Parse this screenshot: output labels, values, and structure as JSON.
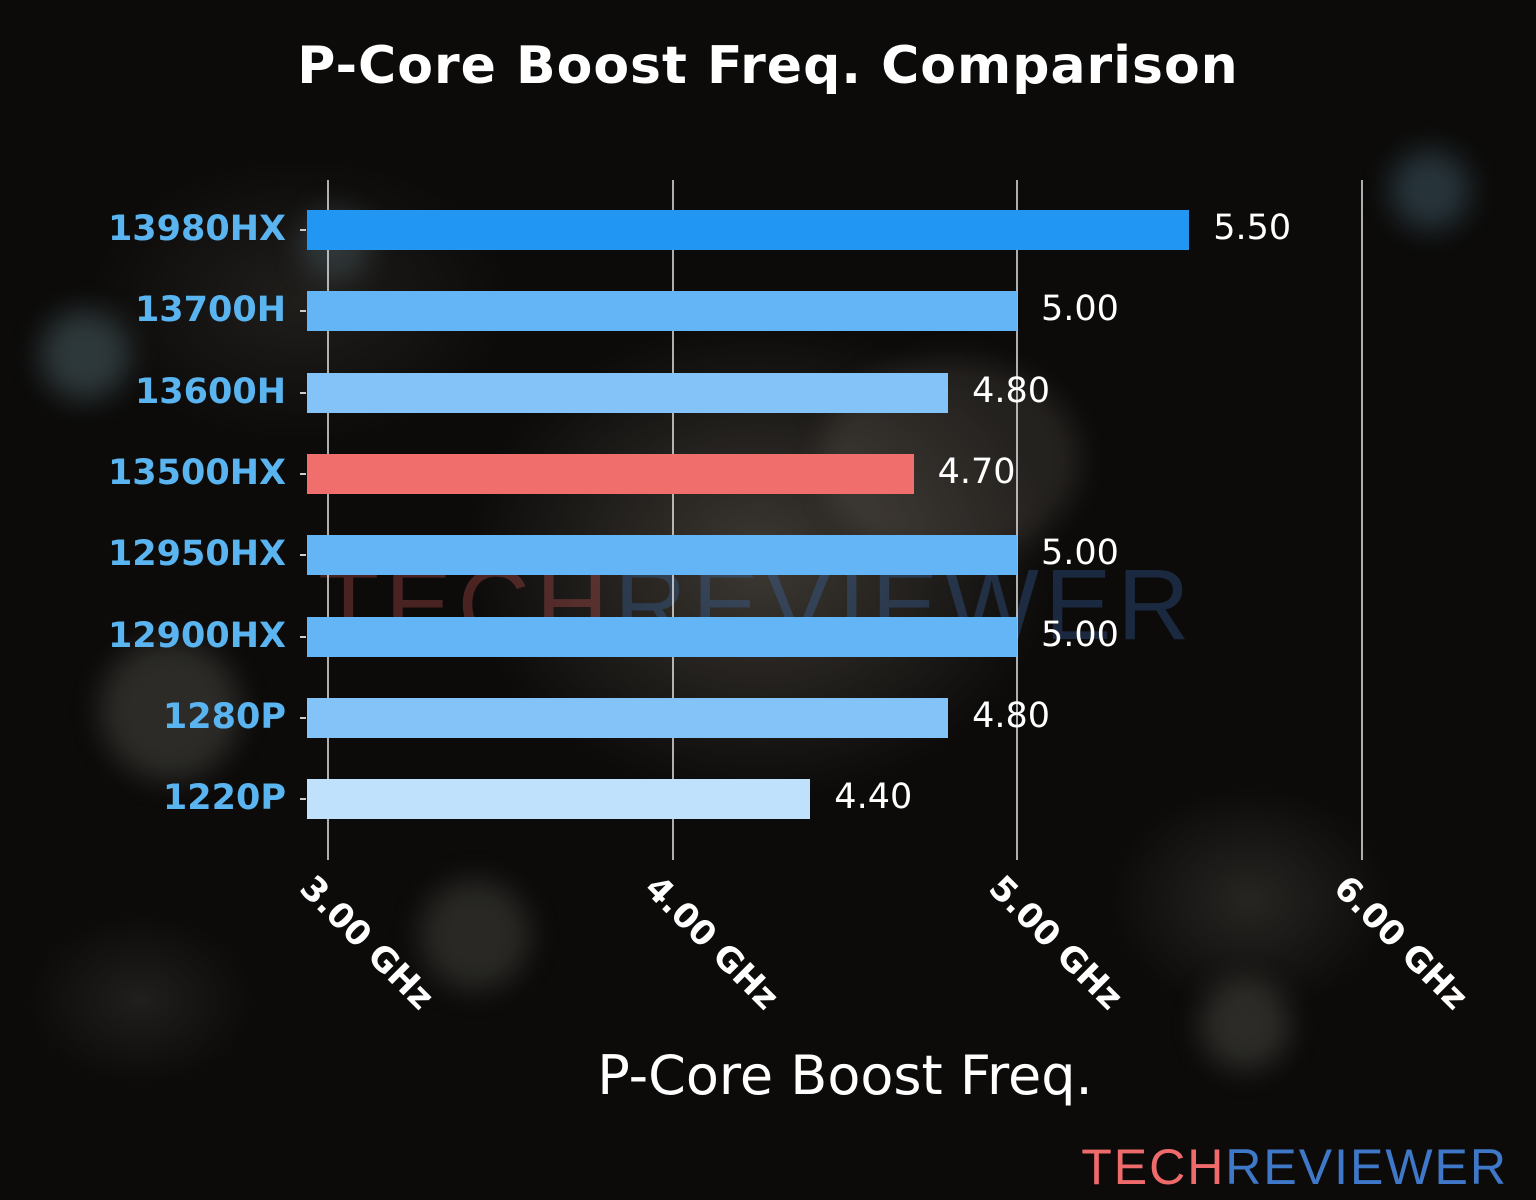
{
  "chart_data": {
    "type": "bar",
    "orientation": "horizontal",
    "title": "P-Core Boost Freq. Comparison",
    "xlabel": "P-Core Boost Freq.",
    "ylabel": "",
    "xlim": [
      3.0,
      6.0
    ],
    "x_ticks": [
      "3.00 GHz",
      "4.00 GHz",
      "5.00 GHz",
      "6.00 GHz"
    ],
    "grid": "vertical",
    "legend": "none",
    "categories": [
      "13980HX",
      "13700H",
      "13600H",
      "13500HX",
      "12950HX",
      "12900HX",
      "1280P",
      "1220P"
    ],
    "values": [
      5.5,
      5.0,
      4.8,
      4.7,
      5.0,
      5.0,
      4.8,
      4.4
    ],
    "value_labels": [
      "5.50",
      "5.00",
      "4.80",
      "4.70",
      "5.00",
      "5.00",
      "4.80",
      "4.40"
    ],
    "bar_colors": [
      "#2196f3",
      "#64b5f6",
      "#84c3f8",
      "#f06e6b",
      "#64b5f6",
      "#64b5f6",
      "#84c3f8",
      "#bfe1fc"
    ],
    "highlighted": "13500HX",
    "unit": "GHz"
  },
  "branding": {
    "logo_part1": "TECH",
    "logo_part2": "REVIEWER",
    "logo_color1": "#ef6b6b",
    "logo_color2": "#3f78c8"
  }
}
